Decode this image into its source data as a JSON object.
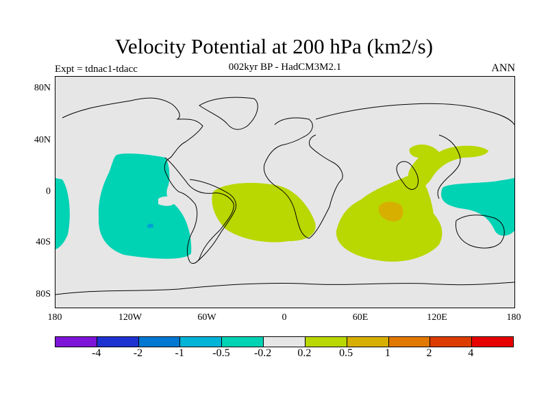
{
  "title": "Velocity Potential at 200 hPa (km2/s)",
  "subtitle": "002kyr BP - HadCM3M2.1",
  "left_label": "Expt = tdnac1-tdacc",
  "right_label": "ANN",
  "map": {
    "projection": "cylindrical-equidistant",
    "lon_range": [
      -180,
      180
    ],
    "lat_range": [
      -90,
      90
    ],
    "background_color": "#e6e6e6",
    "regions": [
      {
        "name": "east-pacific-negative",
        "level": "-0.5 to -0.2",
        "color": "#00d2b4"
      },
      {
        "name": "west-pacific-negative",
        "level": "-0.5 to -0.2",
        "color": "#00d2b4"
      },
      {
        "name": "atlantic-positive",
        "level": "0.2 to 0.5",
        "color": "#b9d700"
      },
      {
        "name": "indian-ocean-positive",
        "level": "0.2 to 0.5",
        "color": "#b9d700"
      },
      {
        "name": "asia-positive",
        "level": "0.2 to 0.5",
        "color": "#b9d700"
      },
      {
        "name": "indian-ocean-max",
        "level": "0.5 to 1",
        "color": "#d7af00"
      },
      {
        "name": "pacific-small-min",
        "level": "-1 to -0.5",
        "color": "#00a0d7"
      }
    ]
  },
  "y_ticks": [
    "80N",
    "40N",
    "0",
    "40S",
    "80S"
  ],
  "x_ticks": [
    "180",
    "120W",
    "60W",
    "0",
    "60E",
    "120E",
    "180"
  ],
  "colorbar": {
    "colors": [
      "#7d14d7",
      "#1e32d2",
      "#0078d2",
      "#00b4d7",
      "#00d2b4",
      "#e6e6e6",
      "#b9d700",
      "#d7af00",
      "#e17800",
      "#dc3c00",
      "#e60000"
    ],
    "labels": [
      "-4",
      "-2",
      "-1",
      "-0.5",
      "-0.2",
      "0.2",
      "0.5",
      "1",
      "2",
      "4"
    ]
  }
}
